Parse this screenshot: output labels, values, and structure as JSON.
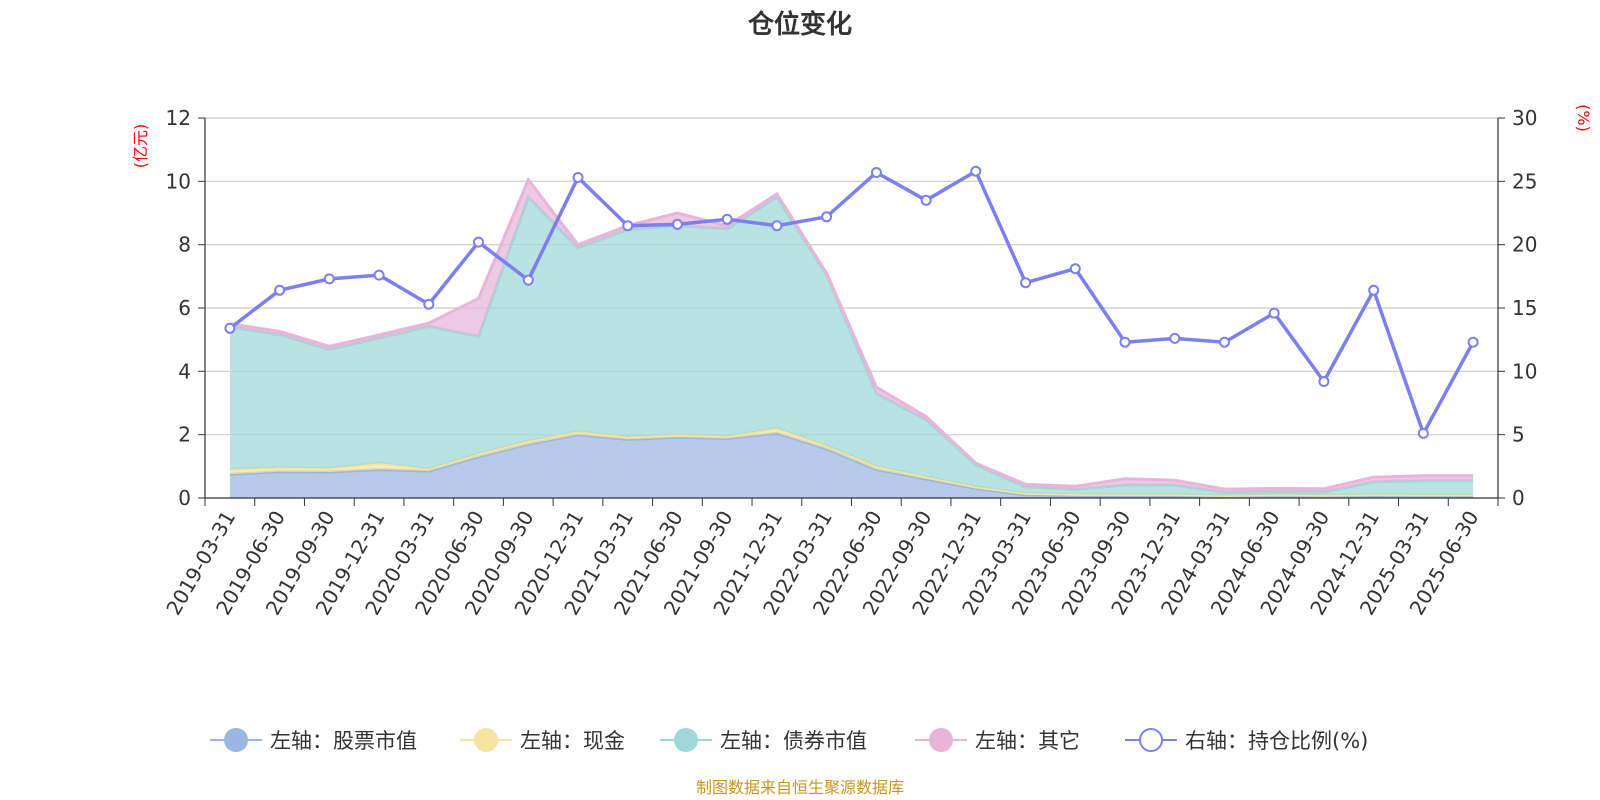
{
  "chart_data": {
    "type": "area",
    "title": "仓位变化",
    "left_unit": "(亿元)",
    "right_unit": "(%)",
    "categories": [
      "2019-03-31",
      "2019-06-30",
      "2019-09-30",
      "2019-12-31",
      "2020-03-31",
      "2020-06-30",
      "2020-09-30",
      "2020-12-31",
      "2021-03-31",
      "2021-06-30",
      "2021-09-30",
      "2021-12-31",
      "2022-03-31",
      "2022-06-30",
      "2022-09-30",
      "2022-12-31",
      "2023-03-31",
      "2023-06-30",
      "2023-09-30",
      "2023-12-31",
      "2024-03-31",
      "2024-06-30",
      "2024-09-30",
      "2024-12-31",
      "2025-03-31",
      "2025-06-30"
    ],
    "y_left": {
      "min": 0,
      "max": 12,
      "ticks": [
        "0",
        "2",
        "4",
        "6",
        "8",
        "10",
        "12"
      ]
    },
    "y_right": {
      "min": 0,
      "max": 30,
      "ticks": [
        "0",
        "5",
        "10",
        "15",
        "20",
        "25",
        "30"
      ]
    },
    "stack_series": [
      {
        "name": "左轴：股票市值",
        "color": "#9bb6e0",
        "values": [
          0.75,
          0.83,
          0.82,
          0.9,
          0.85,
          1.3,
          1.7,
          2.0,
          1.85,
          1.92,
          1.88,
          2.05,
          1.55,
          0.9,
          0.6,
          0.3,
          0.1,
          0.07,
          0.06,
          0.06,
          0.04,
          0.05,
          0.04,
          0.06,
          0.05,
          0.05
        ]
      },
      {
        "name": "左轴：现金",
        "color": "#f5e4a0",
        "values": [
          0.15,
          0.13,
          0.12,
          0.2,
          0.07,
          0.1,
          0.1,
          0.1,
          0.08,
          0.08,
          0.07,
          0.15,
          0.1,
          0.1,
          0.07,
          0.05,
          0.05,
          0.05,
          0.05,
          0.05,
          0.04,
          0.05,
          0.05,
          0.05,
          0.05,
          0.05
        ]
      },
      {
        "name": "左轴：债券市值",
        "color": "#9ed8d8",
        "values": [
          4.5,
          4.2,
          3.75,
          3.95,
          4.5,
          3.7,
          7.7,
          5.8,
          6.55,
          6.6,
          6.55,
          7.3,
          5.4,
          2.3,
          1.8,
          0.7,
          0.2,
          0.15,
          0.3,
          0.3,
          0.1,
          0.1,
          0.1,
          0.4,
          0.45,
          0.45
        ]
      },
      {
        "name": "左轴：其它",
        "color": "#e8b4d8",
        "values": [
          0.1,
          0.1,
          0.1,
          0.1,
          0.1,
          1.2,
          0.55,
          0.1,
          0.12,
          0.4,
          0.1,
          0.1,
          0.05,
          0.2,
          0.1,
          0.05,
          0.08,
          0.1,
          0.2,
          0.15,
          0.1,
          0.1,
          0.1,
          0.15,
          0.15,
          0.15
        ]
      }
    ],
    "line_series": {
      "name": "右轴：持仓比例(%)",
      "color": "#7b7ff0",
      "values": [
        13.4,
        16.4,
        17.3,
        17.6,
        15.3,
        20.2,
        17.2,
        25.3,
        21.5,
        21.6,
        22.0,
        21.5,
        22.2,
        25.7,
        23.5,
        25.8,
        17.0,
        18.1,
        12.3,
        12.6,
        12.3,
        14.6,
        9.2,
        16.4,
        5.1,
        12.3
      ]
    },
    "legend": [
      {
        "label": "左轴：股票市值",
        "color": "#9bb6e0",
        "style": "filled"
      },
      {
        "label": "左轴：现金",
        "color": "#f5e4a0",
        "style": "filled"
      },
      {
        "label": "左轴：债券市值",
        "color": "#9ed8d8",
        "style": "filled"
      },
      {
        "label": "左轴：其它",
        "color": "#e8b4d8",
        "style": "filled"
      },
      {
        "label": "右轴：持仓比例(%)",
        "color": "#7b7ff0",
        "style": "hollow"
      }
    ],
    "legend_position": "bottom",
    "grid": true,
    "source": "制图数据来自恒生聚源数据库"
  }
}
